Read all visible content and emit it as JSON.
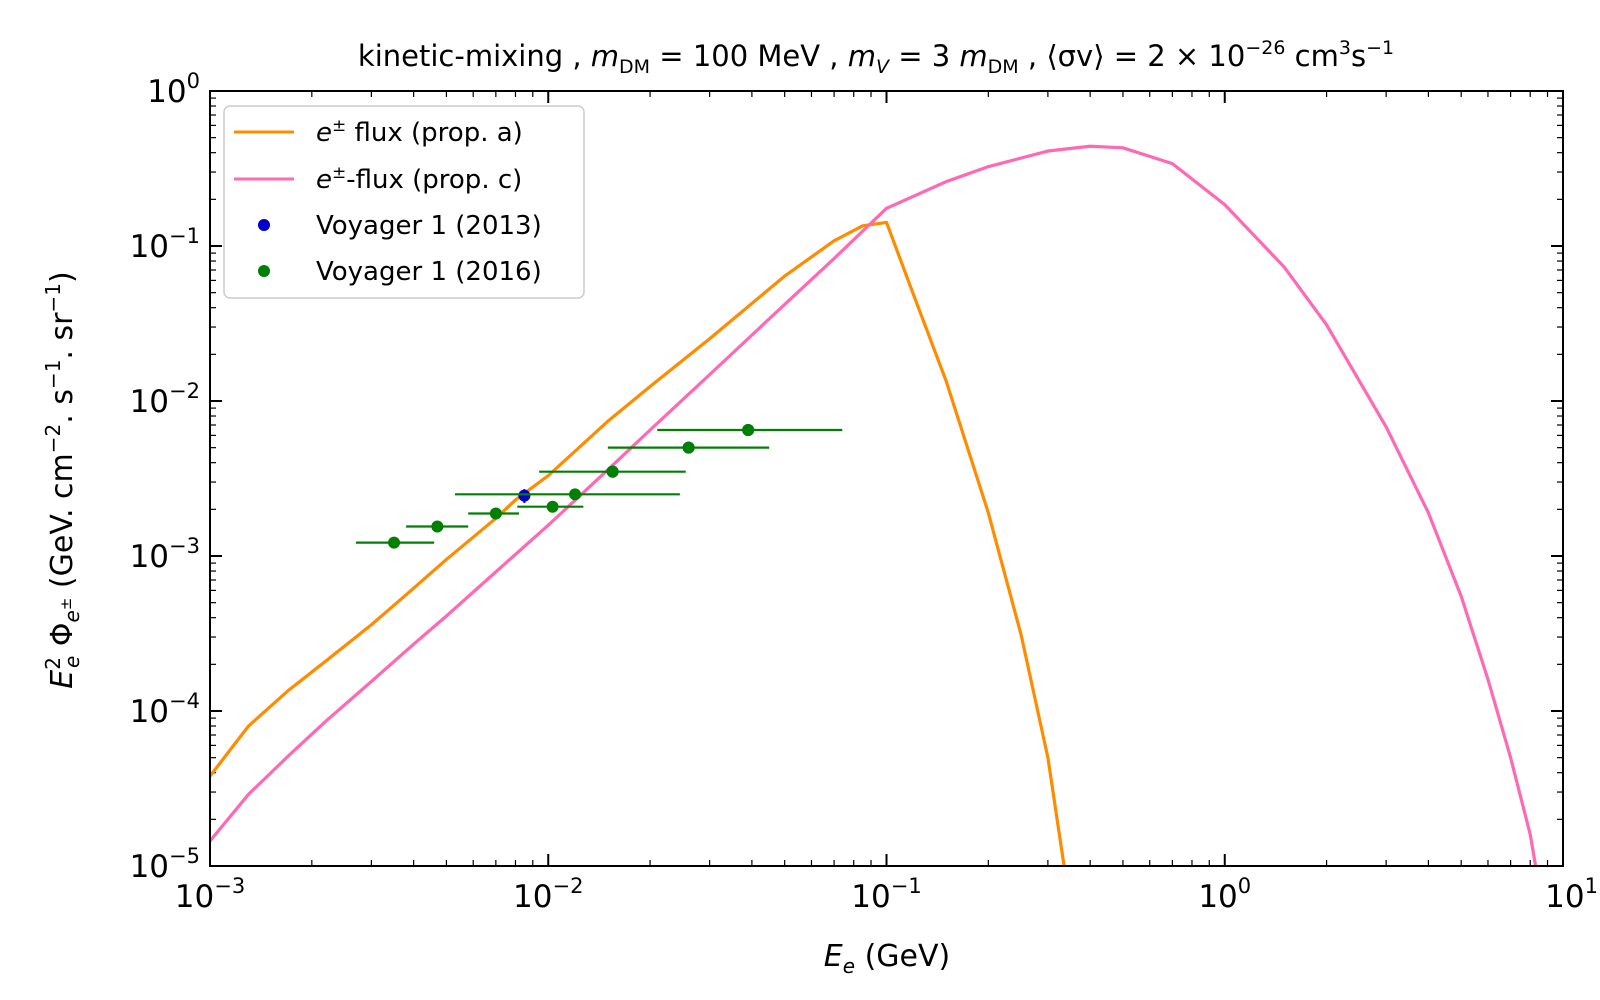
{
  "chart_data": {
    "type": "line",
    "title": "kinetic-mixing ,  m_DM = 100 MeV ,  m_V = 3 m_DM ,  ⟨σv⟩ = 2 × 10^−26 cm^3 s^−1",
    "title_parts": {
      "lead": "kinetic-mixing ,  ",
      "m": "m",
      "dm_sub": "DM",
      "mass_eq": " = 100 MeV ,  ",
      "m2": "m",
      "v_sub": "V",
      "mv_eq": " = 3 ",
      "m3": "m",
      "dm_sub2": "DM",
      "sigv": " ,  ⟨σv⟩ = 2 × 10",
      "exp1": "−26",
      "cm": " cm",
      "exp2": "3",
      "s": "s",
      "exp3": "−1"
    },
    "xlabel": {
      "sym": "E",
      "sub": "e",
      "unit": " (GeV)"
    },
    "ylabel": {
      "E": "E",
      "E_sup": "2",
      "E_sub": "e",
      "Phi": " Φ",
      "Phi_sub": "e",
      "Phi_sub_sup": "±",
      "unit_a": " (GeV. cm",
      "exp_a": "−2",
      "unit_b": ". s",
      "exp_b": "−1",
      "unit_c": ". sr",
      "exp_c": "−1",
      "unit_d": ")"
    },
    "xscale": "log",
    "yscale": "log",
    "xlim": [
      0.001,
      10
    ],
    "ylim": [
      1e-05,
      1
    ],
    "x_ticks": [
      {
        "value": 0.001,
        "base": "10",
        "exp": "−3"
      },
      {
        "value": 0.01,
        "base": "10",
        "exp": "−2"
      },
      {
        "value": 0.1,
        "base": "10",
        "exp": "−1"
      },
      {
        "value": 1,
        "base": "10",
        "exp": "0"
      },
      {
        "value": 10,
        "base": "10",
        "exp": "1"
      }
    ],
    "y_ticks": [
      {
        "value": 1e-05,
        "base": "10",
        "exp": "−5"
      },
      {
        "value": 0.0001,
        "base": "10",
        "exp": "−4"
      },
      {
        "value": 0.001,
        "base": "10",
        "exp": "−3"
      },
      {
        "value": 0.01,
        "base": "10",
        "exp": "−2"
      },
      {
        "value": 0.1,
        "base": "10",
        "exp": "−1"
      },
      {
        "value": 1,
        "base": "10",
        "exp": "0"
      }
    ],
    "legend_position": "upper-left",
    "series": [
      {
        "name": "e± flux (prop. a)",
        "label_sym": "e",
        "label_sup": "±",
        "label_rest": " flux (prop. a)",
        "kind": "line",
        "color": "#ff8c00",
        "x": [
          0.001,
          0.0013,
          0.0017,
          0.0022,
          0.003,
          0.004,
          0.005,
          0.007,
          0.008,
          0.01,
          0.015,
          0.02,
          0.03,
          0.05,
          0.07,
          0.085,
          0.1,
          0.12,
          0.15,
          0.2,
          0.25,
          0.3,
          0.335
        ],
        "y": [
          3.8e-05,
          8e-05,
          0.000135,
          0.00021,
          0.00036,
          0.00062,
          0.00095,
          0.00175,
          0.0023,
          0.0033,
          0.0074,
          0.0124,
          0.0252,
          0.064,
          0.108,
          0.135,
          0.142,
          0.049,
          0.0135,
          0.0019,
          0.00031,
          5e-05,
          1e-05
        ]
      },
      {
        "name": "e±-flux (prop. c)",
        "label_sym": "e",
        "label_sup": "±",
        "label_rest": "-flux (prop. c)",
        "kind": "line",
        "color": "#ff69b4",
        "x": [
          0.001,
          0.0013,
          0.0017,
          0.0022,
          0.003,
          0.004,
          0.005,
          0.007,
          0.01,
          0.015,
          0.02,
          0.03,
          0.05,
          0.07,
          0.1,
          0.15,
          0.2,
          0.3,
          0.4,
          0.5,
          0.7,
          1.0,
          1.5,
          2.0,
          3.0,
          4.0,
          5.0,
          6.0,
          7.0,
          8.0,
          8.3
        ],
        "y": [
          1.45e-05,
          2.9e-05,
          5.1e-05,
          8.6e-05,
          0.000155,
          0.00027,
          0.00041,
          0.00079,
          0.00158,
          0.0036,
          0.0065,
          0.0148,
          0.042,
          0.083,
          0.175,
          0.26,
          0.325,
          0.41,
          0.44,
          0.43,
          0.34,
          0.185,
          0.073,
          0.031,
          0.0068,
          0.0019,
          0.00055,
          0.00016,
          5e-05,
          1.6e-05,
          1e-05
        ]
      },
      {
        "name": "Voyager 1 (2013)",
        "kind": "points",
        "color": "#0000cd",
        "points": [
          {
            "x": 0.0085,
            "y": 0.00245,
            "xerr": [
              0.0085,
              0.0085
            ],
            "yerr": [
              0.00025,
              0.00025
            ]
          },
          {
            "x": 0.0155,
            "y": 0.0035,
            "xerr": [
              0.0155,
              0.0155
            ],
            "yerr": [
              0.0003,
              0.0003
            ]
          },
          {
            "x": 0.026,
            "y": 0.005,
            "xerr": [
              0.026,
              0.026
            ],
            "yerr": [
              0.0004,
              0.0004
            ]
          },
          {
            "x": 0.039,
            "y": 0.0065,
            "xerr": [
              0.039,
              0.039
            ],
            "yerr": [
              0.0005,
              0.0005
            ]
          }
        ]
      },
      {
        "name": "Voyager 1 (2016)",
        "kind": "points",
        "color": "#008000",
        "points": [
          {
            "x": 0.0035,
            "y": 0.00122,
            "xerr": [
              0.0027,
              0.0046
            ],
            "yerr": [
              0.0001,
              0.0001
            ]
          },
          {
            "x": 0.0047,
            "y": 0.00155,
            "xerr": [
              0.0038,
              0.0058
            ],
            "yerr": [
              0.0001,
              0.0001
            ]
          },
          {
            "x": 0.007,
            "y": 0.00188,
            "xerr": [
              0.0058,
              0.0082
            ],
            "yerr": [
              0.00012,
              0.00012
            ]
          },
          {
            "x": 0.0103,
            "y": 0.00208,
            "xerr": [
              0.0081,
              0.0127
            ],
            "yerr": [
              0.00012,
              0.00012
            ]
          },
          {
            "x": 0.012,
            "y": 0.0025,
            "xerr": [
              0.0053,
              0.0245
            ],
            "yerr": [
              0.00015,
              0.00015
            ]
          },
          {
            "x": 0.0155,
            "y": 0.0035,
            "xerr": [
              0.0094,
              0.0255
            ],
            "yerr": [
              0.0002,
              0.0002
            ]
          },
          {
            "x": 0.026,
            "y": 0.005,
            "xerr": [
              0.015,
              0.045
            ],
            "yerr": [
              0.0003,
              0.0003
            ]
          },
          {
            "x": 0.039,
            "y": 0.0065,
            "xerr": [
              0.021,
              0.074
            ],
            "yerr": [
              0.0004,
              0.0004
            ]
          }
        ]
      }
    ]
  }
}
